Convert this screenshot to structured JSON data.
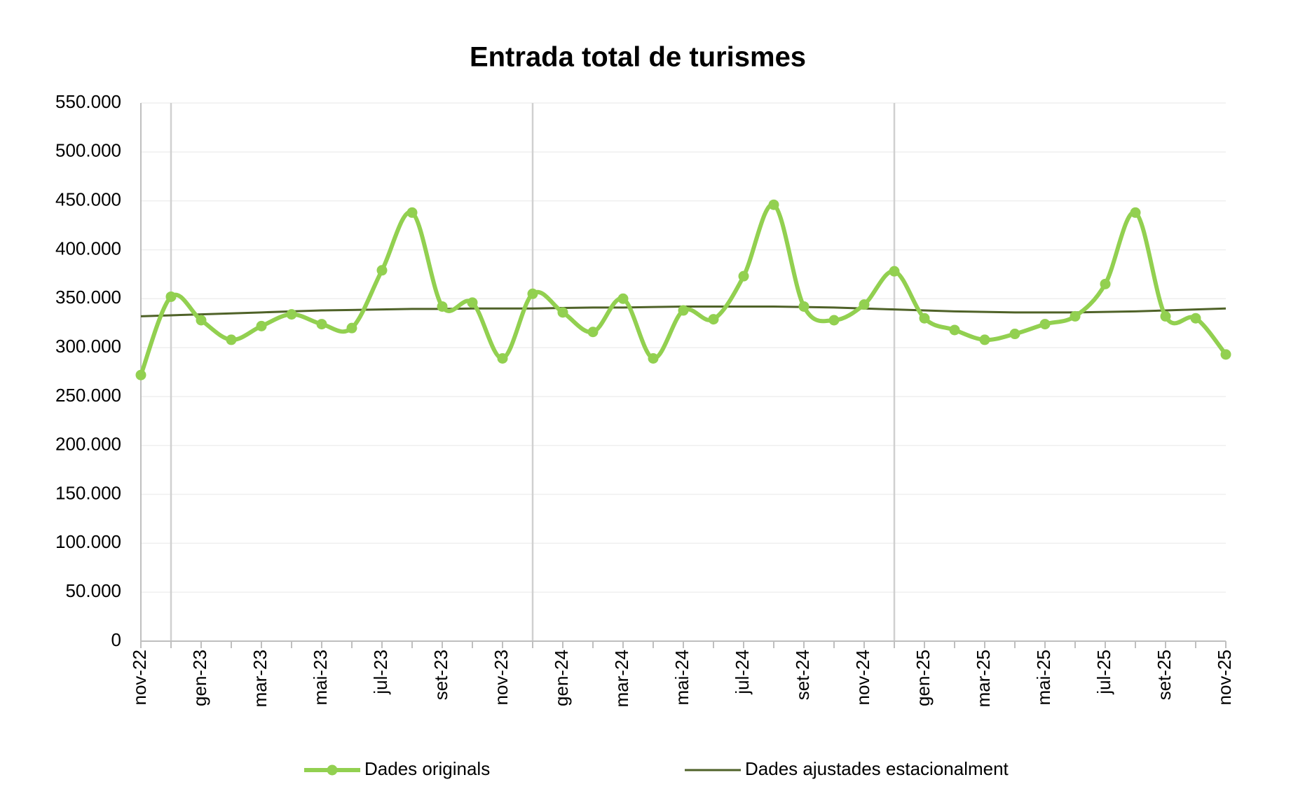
{
  "chart_data": {
    "type": "line",
    "title": "Entrada total de turismes",
    "categories": [
      "nov-22",
      null,
      "gen-23",
      null,
      "mar-23",
      null,
      "mai-23",
      null,
      "jul-23",
      null,
      "set-23",
      null,
      "nov-23",
      null,
      "gen-24",
      null,
      "mar-24",
      null,
      "mai-24",
      null,
      "jul-24",
      null,
      "set-24",
      null,
      "nov-24",
      null,
      "gen-25",
      null,
      "mar-25",
      null,
      "mai-25",
      null,
      "jul-25",
      null,
      "set-25",
      null,
      "nov-25"
    ],
    "series": [
      {
        "name": "Dades originals",
        "color": "#92d050",
        "smooth": true,
        "markers": true,
        "values": [
          272000,
          352000,
          328000,
          308000,
          322000,
          334000,
          324000,
          320000,
          379000,
          438000,
          342000,
          346000,
          289000,
          355000,
          336000,
          316000,
          350000,
          289000,
          338000,
          329000,
          373000,
          446000,
          342000,
          328000,
          344000,
          378000,
          330000,
          318000,
          308000,
          314000,
          324000,
          332000,
          365000,
          438000,
          332000,
          330000,
          293000
        ]
      },
      {
        "name": "Dades ajustades estacionalment",
        "color": "#4f6228",
        "smooth": false,
        "markers": false,
        "values": [
          332000,
          333000,
          334000,
          335000,
          336000,
          337000,
          338000,
          338500,
          339000,
          339500,
          339500,
          340000,
          340000,
          340000,
          340500,
          341000,
          341000,
          341500,
          342000,
          342000,
          342000,
          342000,
          341500,
          341000,
          340000,
          339000,
          338000,
          337000,
          336500,
          336000,
          336000,
          336000,
          336500,
          337000,
          338000,
          339000,
          340000
        ]
      }
    ],
    "ylim": [
      0,
      550000
    ],
    "yticks": [
      0,
      {
        "value": 50000,
        "label": "50.000"
      },
      {
        "value": 100000,
        "label": "100.000"
      },
      {
        "value": 150000,
        "label": "150.000"
      },
      {
        "value": 200000,
        "label": "200.000"
      },
      {
        "value": 250000,
        "label": "250.000"
      },
      {
        "value": 300000,
        "label": "300.000"
      },
      {
        "value": 350000,
        "label": "350.000"
      },
      {
        "value": 400000,
        "label": "400.000"
      },
      {
        "value": 450000,
        "label": "450.000"
      },
      {
        "value": 500000,
        "label": "500.000"
      },
      {
        "value": 550000,
        "label": "550.000"
      }
    ],
    "grid": true,
    "legend": "bottom"
  }
}
